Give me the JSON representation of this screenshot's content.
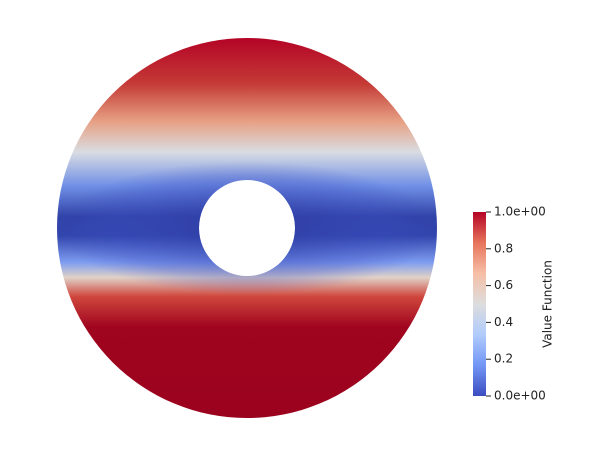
{
  "chart_data": {
    "type": "field",
    "colorbar": {
      "label": "Value Function",
      "lim": [
        0,
        1
      ],
      "ticks": [
        {
          "value": 1,
          "label": "1.0e+00"
        },
        0.8,
        0.6,
        0.4,
        0.2,
        {
          "value": 0,
          "label": "0.0e+00"
        }
      ],
      "colors": [
        "#3b4cc0",
        "#7396f5",
        "#b0cbfc",
        "#dddddd",
        "#f6bfa6",
        "#e7745b",
        "#b40426"
      ]
    }
  }
}
